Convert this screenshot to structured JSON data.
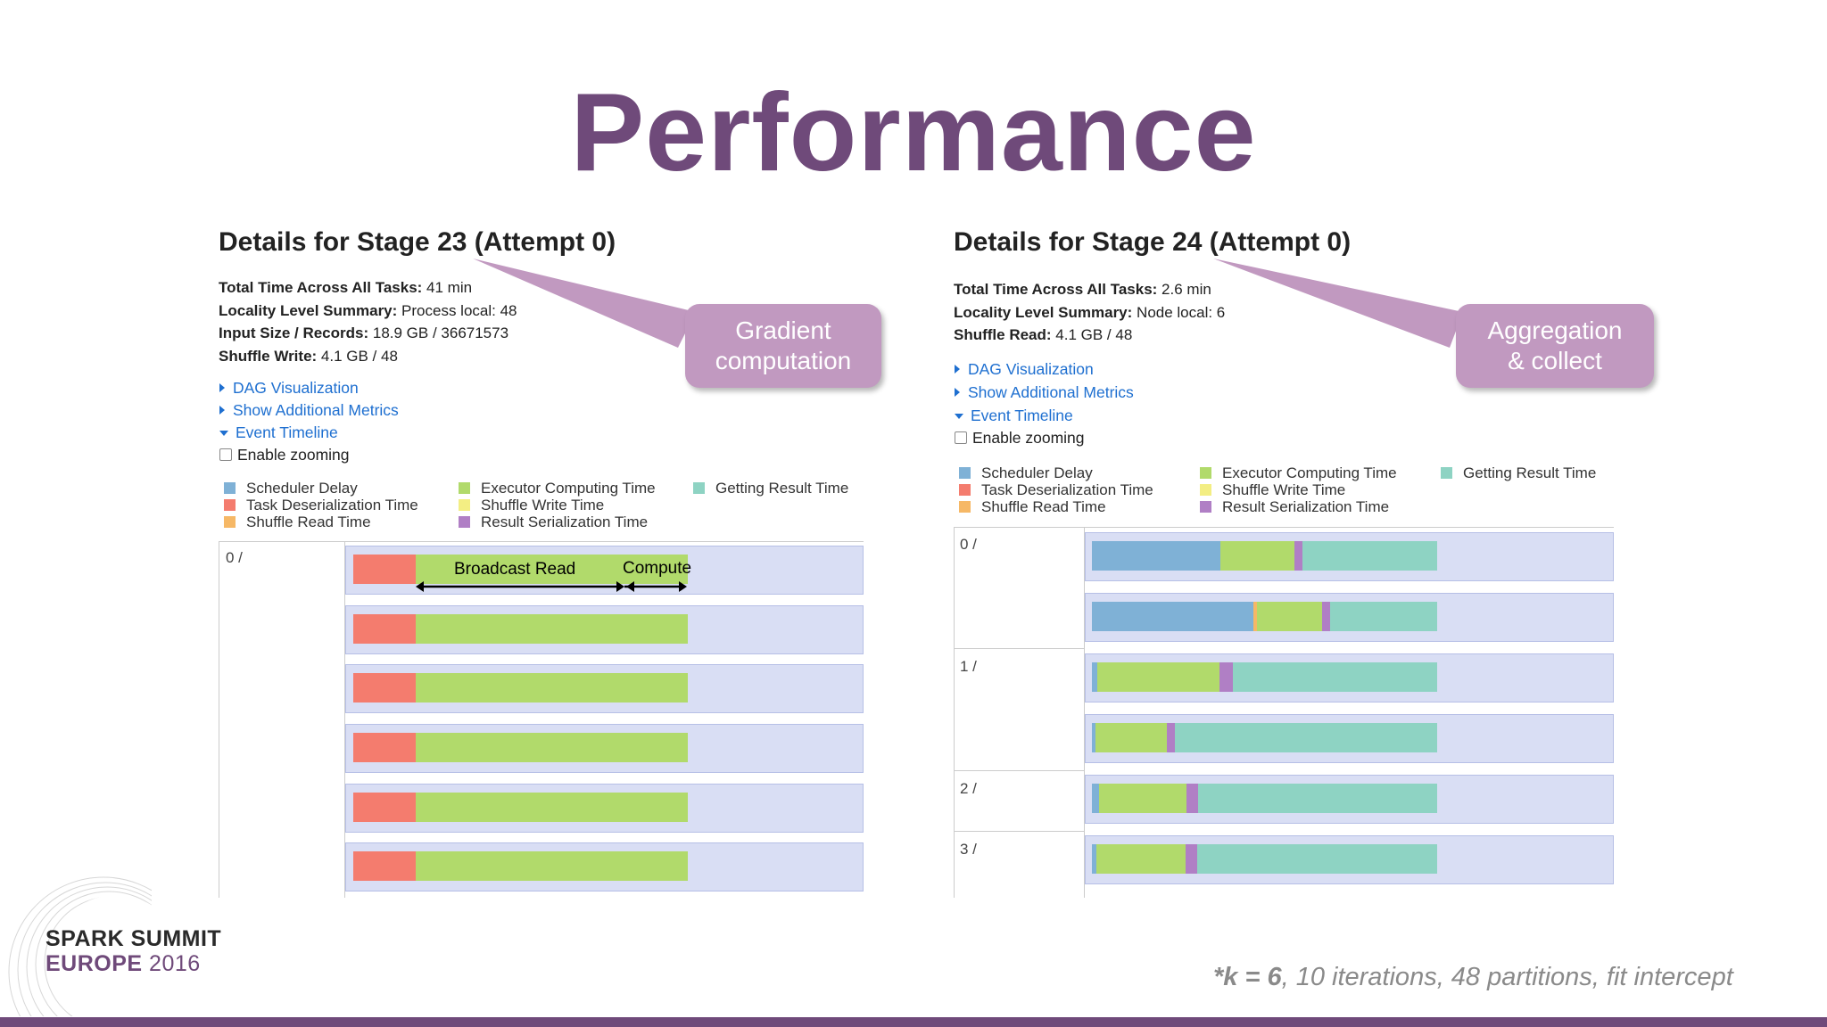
{
  "slide": {
    "title": "Performance",
    "footnote_k": "*k = 6",
    "footnote_rest": ", 10 iterations,  48 partitions,  fit intercept",
    "brand_line1": "SPARK SUMMIT",
    "brand_line2a": "EUROPE",
    "brand_line2b": "2016",
    "accent_color": "#6f4a7a"
  },
  "legend_colors": {
    "scheduler_delay": "#7fb1d6",
    "task_deserialization": "#f47c6e",
    "shuffle_read": "#f6b866",
    "executor_computing": "#b1da6b",
    "shuffle_write": "#f3ee83",
    "result_serialization": "#b07fc5",
    "getting_result": "#8ed3c3"
  },
  "left": {
    "heading": "Details for Stage 23 (Attempt 0)",
    "summary": [
      {
        "label": "Total Time Across All Tasks:",
        "value": " 41 min"
      },
      {
        "label": "Locality Level Summary:",
        "value": " Process local: 48"
      },
      {
        "label": "Input Size / Records:",
        "value": " 18.9 GB / 36671573"
      },
      {
        "label": "Shuffle Write:",
        "value": " 4.1 GB / 48"
      }
    ],
    "links": [
      "DAG Visualization",
      "Show Additional Metrics",
      "Event Timeline"
    ],
    "checkbox": "Enable zooming",
    "legend": [
      "Scheduler Delay",
      "Task Deserialization Time",
      "Shuffle Read Time",
      "Executor Computing Time",
      "Shuffle Write Time",
      "Result Serialization Time",
      "Getting Result Time"
    ],
    "lane_label": "0 /",
    "callout": [
      "Gradient",
      "computation"
    ],
    "annot_broadcast": "Broadcast Read",
    "annot_compute": "Compute"
  },
  "right": {
    "heading": "Details for Stage 24 (Attempt 0)",
    "summary": [
      {
        "label": "Total Time Across All Tasks:",
        "value": " 2.6 min"
      },
      {
        "label": "Locality Level Summary:",
        "value": " Node local: 6"
      },
      {
        "label": "Shuffle Read:",
        "value": " 4.1 GB / 48"
      }
    ],
    "links": [
      "DAG Visualization",
      "Show Additional Metrics",
      "Event Timeline"
    ],
    "checkbox": "Enable zooming",
    "legend": [
      "Scheduler Delay",
      "Task Deserialization Time",
      "Shuffle Read Time",
      "Executor Computing Time",
      "Shuffle Write Time",
      "Result Serialization Time",
      "Getting Result Time"
    ],
    "lanes": [
      "0 /",
      "1 /",
      "2 /",
      "3 /"
    ],
    "callout": [
      "Aggregation",
      "& collect"
    ]
  }
}
